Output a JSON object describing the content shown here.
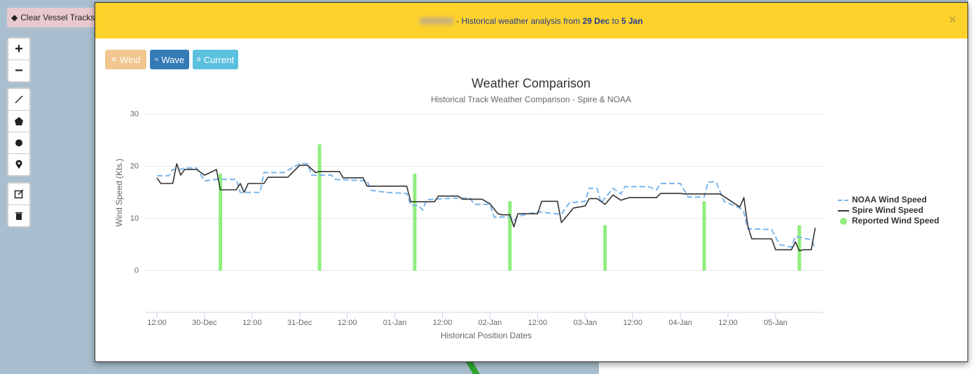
{
  "toolbar": {
    "clear": "Clear Vessel Tracks",
    "zoom_in": "+",
    "zoom_out": "−"
  },
  "header": {
    "text_before": "- Historical weather analysis from ",
    "start": "29 Dec",
    "middle": " to ",
    "end": "5 Jan",
    "close": "×"
  },
  "buttons": [
    "Wind",
    "Wave",
    "Current"
  ],
  "chart_data": {
    "type": "line",
    "title": "Weather Comparison",
    "subtitle": "Historical Track Weather Comparison - Spire & NOAA",
    "y_label": "Wind Speed (Kts.)",
    "x_label": "Historical Position Dates",
    "xlim": [
      "12-29 09:00",
      "01-05 12:00"
    ],
    "xticks": [
      {
        "value": "12-29 12:00",
        "label": "12:00"
      },
      {
        "value": "12-30 00:00",
        "label": "30-Dec"
      },
      {
        "value": "12-30 12:00",
        "label": "12:00"
      },
      {
        "value": "12-31 00:00",
        "label": "31-Dec"
      },
      {
        "value": "12-31 12:00",
        "label": "12:00"
      },
      {
        "value": "01-01 00:00",
        "label": "01-Jan"
      },
      {
        "value": "01-01 12:00",
        "label": "12:00"
      },
      {
        "value": "01-02 00:00",
        "label": "02-Jan"
      },
      {
        "value": "01-02 12:00",
        "label": "12:00"
      },
      {
        "value": "01-03 00:00",
        "label": "03-Jan"
      },
      {
        "value": "01-03 12:00",
        "label": "12:00"
      },
      {
        "value": "01-04 00:00",
        "label": "04-Jan"
      },
      {
        "value": "01-04 12:00",
        "label": "12:00"
      },
      {
        "value": "01-05 00:00",
        "label": "05-Jan"
      }
    ],
    "ylim": [
      -8,
      30
    ],
    "yticks": [
      0,
      10,
      20,
      30
    ],
    "grid": true,
    "series": [
      {
        "name": "NOAA Wind Speed",
        "color": "#7cb5ec",
        "kind": "line",
        "dashed": true,
        "x": [
          "12-29 12:00",
          "12-29 15:00",
          "12-29 16:00",
          "12-29 18:00",
          "12-29 19:00",
          "12-29 22:00",
          "12-30 00:00",
          "12-30 03:00",
          "12-30 08:00",
          "12-30 09:00",
          "12-30 14:00",
          "12-30 15:00",
          "12-30 20:00",
          "12-31 00:00",
          "12-31 02:00",
          "12-31 03:00",
          "12-31 08:00",
          "12-31 09:00",
          "12-31 17:00",
          "12-31 18:00",
          "12-31 22:00",
          "01-01 03:00",
          "01-01 04:00",
          "01-01 06:00",
          "01-01 07:00",
          "01-01 08:00",
          "01-01 15:00",
          "01-01 19:00",
          "01-01 20:00",
          "01-02 00:00",
          "01-02 01:00",
          "01-02 05:00",
          "01-02 06:00",
          "01-02 07:00",
          "01-02 12:00",
          "01-02 18:00",
          "01-02 20:00",
          "01-03 00:00",
          "01-03 01:00",
          "01-03 03:00",
          "01-03 04:00",
          "01-03 07:00",
          "01-03 09:00",
          "01-03 10:00",
          "01-03 16:00",
          "01-03 18:00",
          "01-03 19:00",
          "01-04 00:00",
          "01-04 02:00",
          "01-04 06:00",
          "01-04 07:00",
          "01-04 09:00",
          "01-04 11:00",
          "01-04 15:00",
          "01-04 16:00",
          "01-04 17:00",
          "01-04 23:00",
          "01-05 01:00",
          "01-05 04:00",
          "01-05 05:00",
          "01-05 09:00",
          "01-05 10:00"
        ],
        "values": [
          18.2,
          18.2,
          19.4,
          19.4,
          19.7,
          19.7,
          17.2,
          17.5,
          17.5,
          15.0,
          15.0,
          18.8,
          18.8,
          20.5,
          20.5,
          18.3,
          18.3,
          17.5,
          17.2,
          15.4,
          15.0,
          14.8,
          12.5,
          12.5,
          11.6,
          13.6,
          13.9,
          13.9,
          12.7,
          12.7,
          10.3,
          10.3,
          9.5,
          10.4,
          11.3,
          10.8,
          13.0,
          13.3,
          15.8,
          15.8,
          13.0,
          15.8,
          14.7,
          16.1,
          16.1,
          15.5,
          16.7,
          16.7,
          14.1,
          14.1,
          17.0,
          17.0,
          13.3,
          12.0,
          11.2,
          8.0,
          7.9,
          5.0,
          4.5,
          6.6,
          5.9,
          4.3
        ]
      },
      {
        "name": "Spire Wind Speed",
        "color": "#333333",
        "kind": "line",
        "dashed": false,
        "x": [
          "12-29 12:00",
          "12-29 13:00",
          "12-29 16:00",
          "12-29 17:00",
          "12-29 18:00",
          "12-29 19:00",
          "12-29 22:00",
          "12-30 00:00",
          "12-30 02:00",
          "12-30 03:00",
          "12-30 04:00",
          "12-30 08:00",
          "12-30 09:00",
          "12-30 10:00",
          "12-30 11:00",
          "12-30 15:00",
          "12-30 16:00",
          "12-30 21:00",
          "12-31 00:00",
          "12-31 02:00",
          "12-31 04:00",
          "12-31 05:00",
          "12-31 10:00",
          "12-31 11:00",
          "12-31 16:00",
          "12-31 17:00",
          "12-31 21:00",
          "01-01 03:00",
          "01-01 04:00",
          "01-01 10:00",
          "01-01 11:00",
          "01-01 16:00",
          "01-01 17:00",
          "01-01 22:00",
          "01-02 00:00",
          "01-02 02:00",
          "01-02 03:00",
          "01-02 05:00",
          "01-02 06:00",
          "01-02 07:00",
          "01-02 12:00",
          "01-02 13:00",
          "01-02 17:00",
          "01-02 18:00",
          "01-02 21:00",
          "01-03 00:00",
          "01-03 01:00",
          "01-03 03:00",
          "01-03 05:00",
          "01-03 07:00",
          "01-03 09:00",
          "01-03 11:00",
          "01-03 18:00",
          "01-03 19:00",
          "01-04 00:00",
          "01-04 01:00",
          "01-04 10:00",
          "01-04 15:00",
          "01-04 16:00",
          "01-04 17:00",
          "01-04 18:00",
          "01-04 23:00",
          "01-05 00:00",
          "01-05 04:00",
          "01-05 05:00",
          "01-05 06:00",
          "01-05 07:00",
          "01-05 09:00",
          "01-05 10:00"
        ],
        "values": [
          17.8,
          16.7,
          16.7,
          20.5,
          18.3,
          19.4,
          19.4,
          18.3,
          19.0,
          19.4,
          15.5,
          15.5,
          16.7,
          15.0,
          16.7,
          16.7,
          17.9,
          17.9,
          20.2,
          20.2,
          18.8,
          19.0,
          19.0,
          17.8,
          17.8,
          16.2,
          16.2,
          16.2,
          13.2,
          13.2,
          14.3,
          14.3,
          13.7,
          13.7,
          12.8,
          10.9,
          10.7,
          10.7,
          8.4,
          10.9,
          10.9,
          13.3,
          13.3,
          9.2,
          12.0,
          12.4,
          13.8,
          13.8,
          12.7,
          14.5,
          13.5,
          14.0,
          14.0,
          14.8,
          14.8,
          14.7,
          14.7,
          12.2,
          14.0,
          8.6,
          6.1,
          6.1,
          4.0,
          4.0,
          5.5,
          3.8,
          4.0,
          4.0,
          8.2
        ]
      },
      {
        "name": "Reported Wind Speed",
        "color": "#90ed7d",
        "kind": "column",
        "x": [
          "12-30 04:00",
          "12-31 05:00",
          "01-01 05:00",
          "01-02 05:00",
          "01-03 05:00",
          "01-04 06:00",
          "01-05 06:00"
        ],
        "values": [
          18.6,
          24.2,
          18.6,
          13.3,
          8.7,
          13.3,
          8.7
        ]
      }
    ]
  }
}
